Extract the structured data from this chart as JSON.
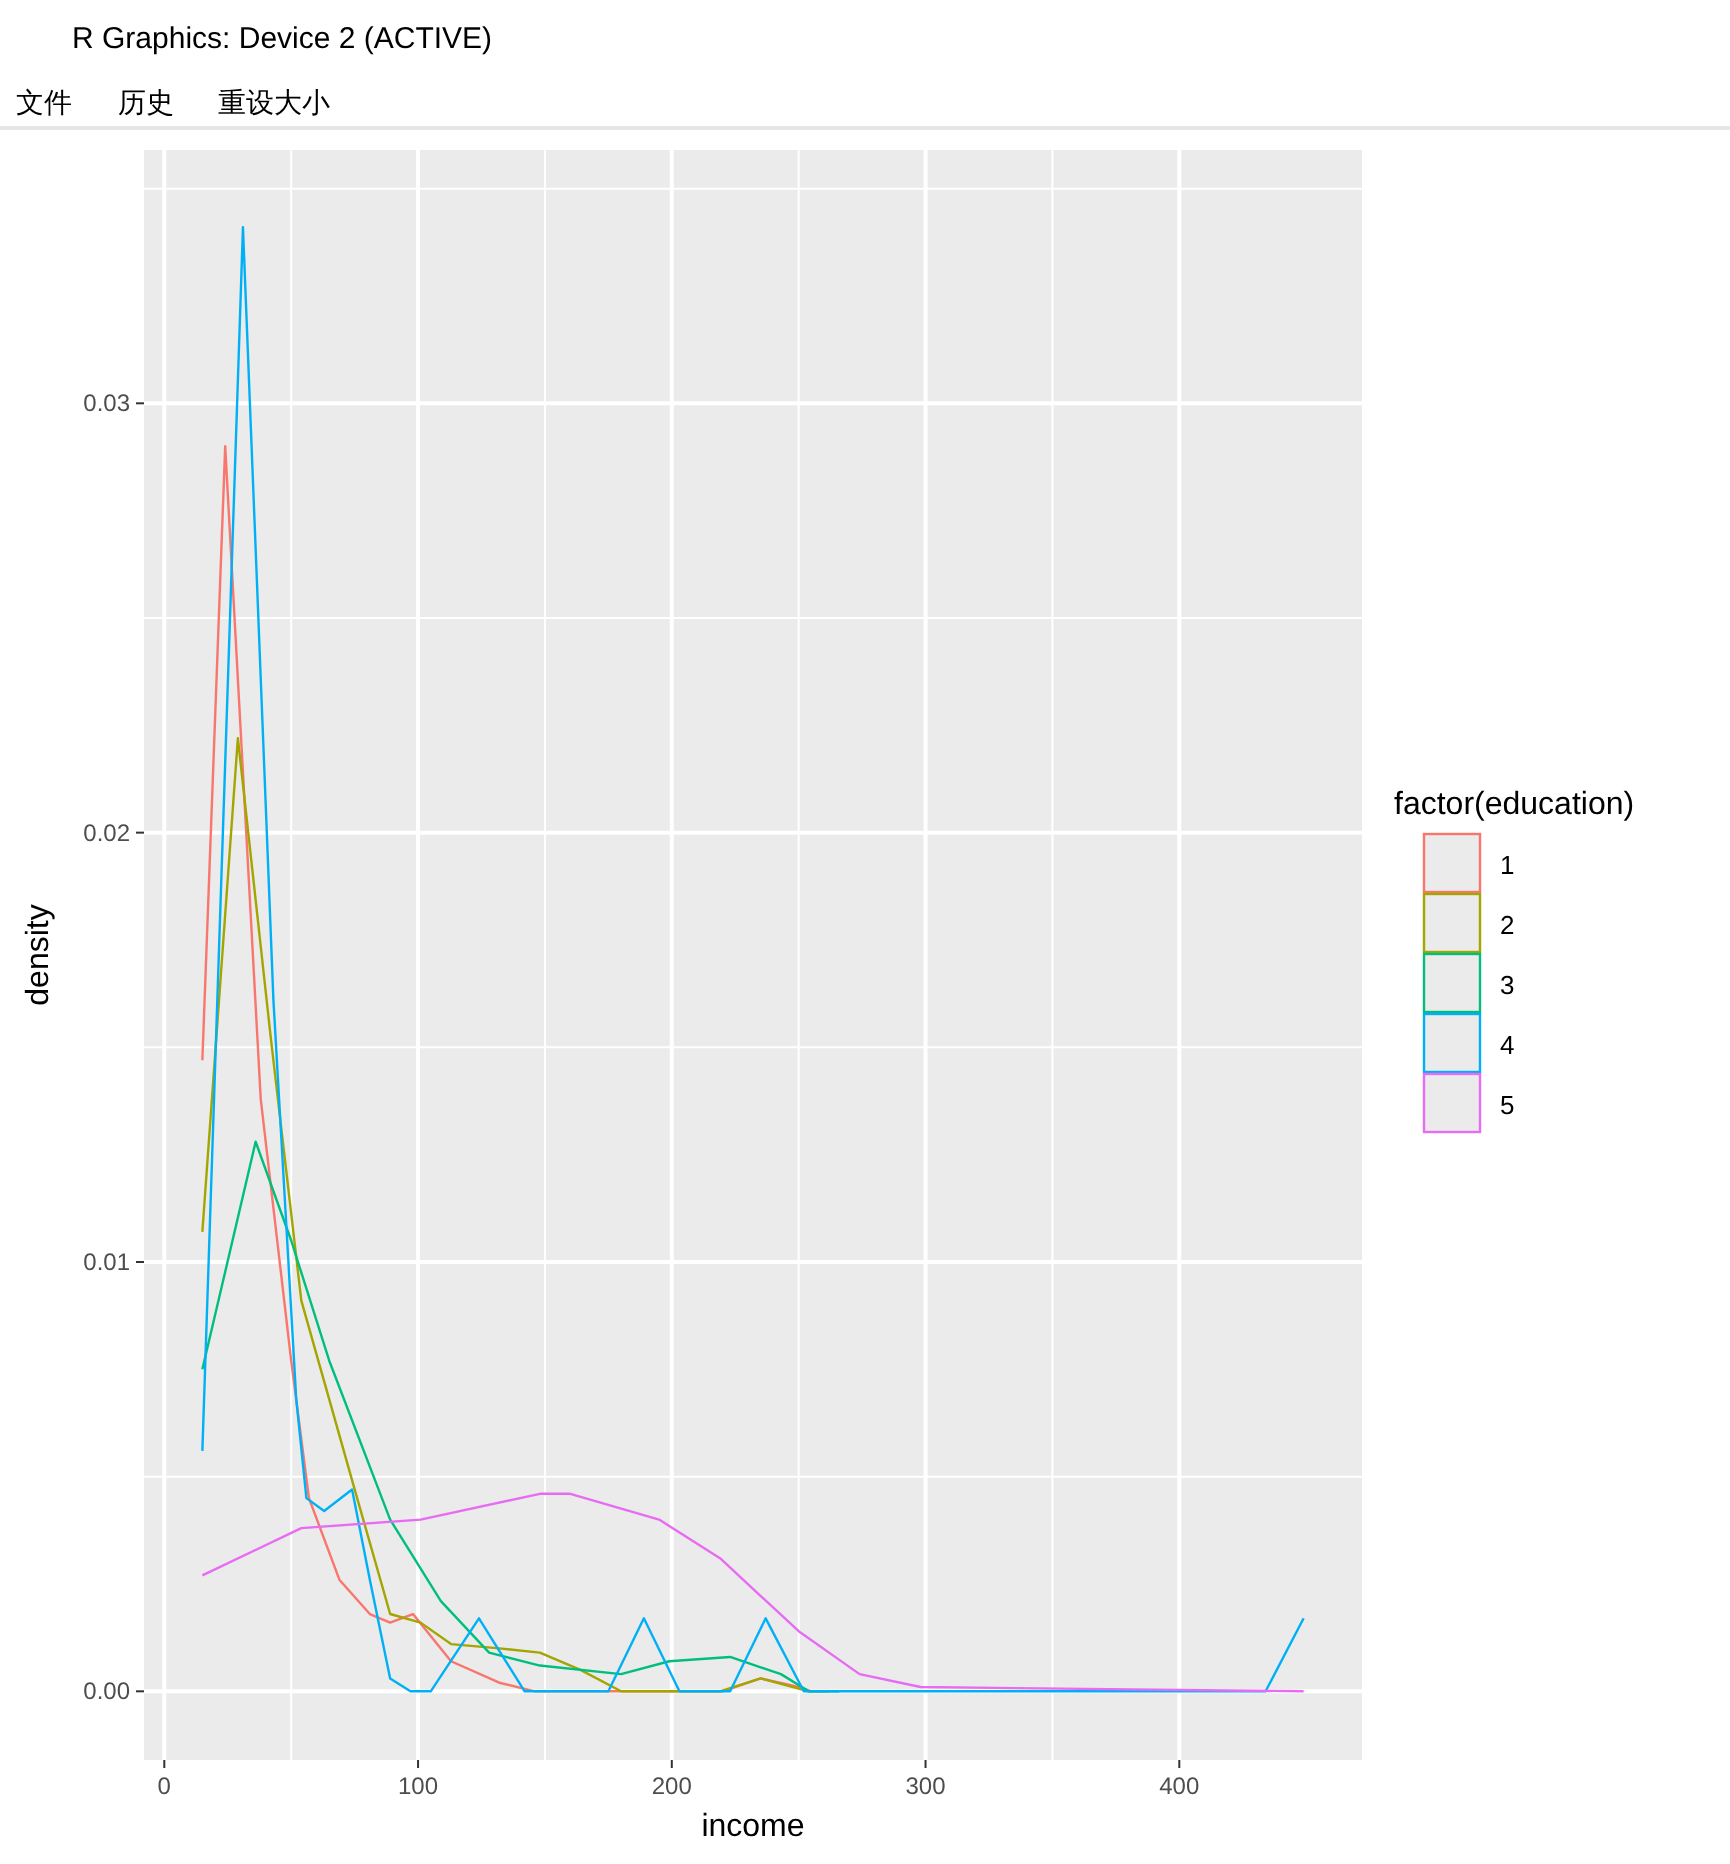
{
  "chart_data": {
    "type": "line",
    "xlabel": "income",
    "ylabel": "density",
    "legend_title": "factor(education)",
    "legend": "right",
    "grid": true,
    "annotations": [
      "R Graphics: Device 2 (ACTIVE)",
      "文件",
      "历史",
      "重设大小"
    ],
    "xlim": [
      -8,
      472
    ],
    "ylim": [
      -0.0016,
      0.0359
    ],
    "xticks": [
      0,
      100,
      200,
      300,
      400
    ],
    "yticks": [
      {
        "value": 0,
        "label": "0.00"
      },
      {
        "value": 0.01,
        "label": "0.01"
      },
      {
        "value": 0.02,
        "label": "0.02"
      },
      {
        "value": 0.03,
        "label": "0.03"
      }
    ],
    "series": [
      {
        "name": "1",
        "color": "#f8766d",
        "x": [
          15,
          24,
          38,
          50,
          57,
          69,
          81,
          89,
          98,
          113,
          132,
          146,
          220,
          235,
          250,
          255
        ],
        "values": [
          0.0147,
          0.029,
          0.0138,
          0.0077,
          0.0045,
          0.0026,
          0.0018,
          0.0016,
          0.0018,
          0.0007,
          0.0002,
          0,
          0,
          0.0003,
          0.0001,
          0
        ]
      },
      {
        "name": "2",
        "color": "#a3a500",
        "x": [
          15,
          29,
          42,
          54,
          65,
          76,
          89,
          101,
          113,
          132,
          148,
          164,
          180,
          219,
          235,
          254,
          262
        ],
        "values": [
          0.0107,
          0.0222,
          0.0152,
          0.0091,
          0.0068,
          0.0045,
          0.0018,
          0.0016,
          0.0011,
          0.001,
          0.0009,
          0.0005,
          0,
          0,
          0.0003,
          0,
          0
        ]
      },
      {
        "name": "3",
        "color": "#00bf7d",
        "x": [
          15,
          36,
          50,
          65,
          89,
          109,
          128,
          148,
          180,
          199,
          223,
          243,
          254,
          266
        ],
        "values": [
          0.0075,
          0.0128,
          0.0105,
          0.0077,
          0.004,
          0.0021,
          0.0009,
          0.0006,
          0.0004,
          0.0007,
          0.0008,
          0.0004,
          0,
          0
        ]
      },
      {
        "name": "4",
        "color": "#00b0f6",
        "x": [
          15,
          31,
          43,
          52,
          56,
          63,
          74,
          81,
          89,
          97,
          105,
          124,
          142,
          175,
          189,
          203,
          223,
          237,
          252,
          434,
          449
        ],
        "values": [
          0.0056,
          0.0341,
          0.0161,
          0.0068,
          0.0045,
          0.0042,
          0.0047,
          0.0026,
          0.0003,
          0,
          0,
          0.0017,
          0,
          0,
          0.0017,
          0,
          0,
          0.0017,
          0,
          0,
          0.0017
        ]
      },
      {
        "name": "5",
        "color": "#e76bf3",
        "x": [
          15,
          54,
          101,
          148,
          160,
          195,
          219,
          250,
          274,
          298,
          449
        ],
        "values": [
          0.0027,
          0.0038,
          0.004,
          0.0046,
          0.0046,
          0.004,
          0.0031,
          0.0014,
          0.0004,
          0.0001,
          0
        ]
      }
    ]
  }
}
